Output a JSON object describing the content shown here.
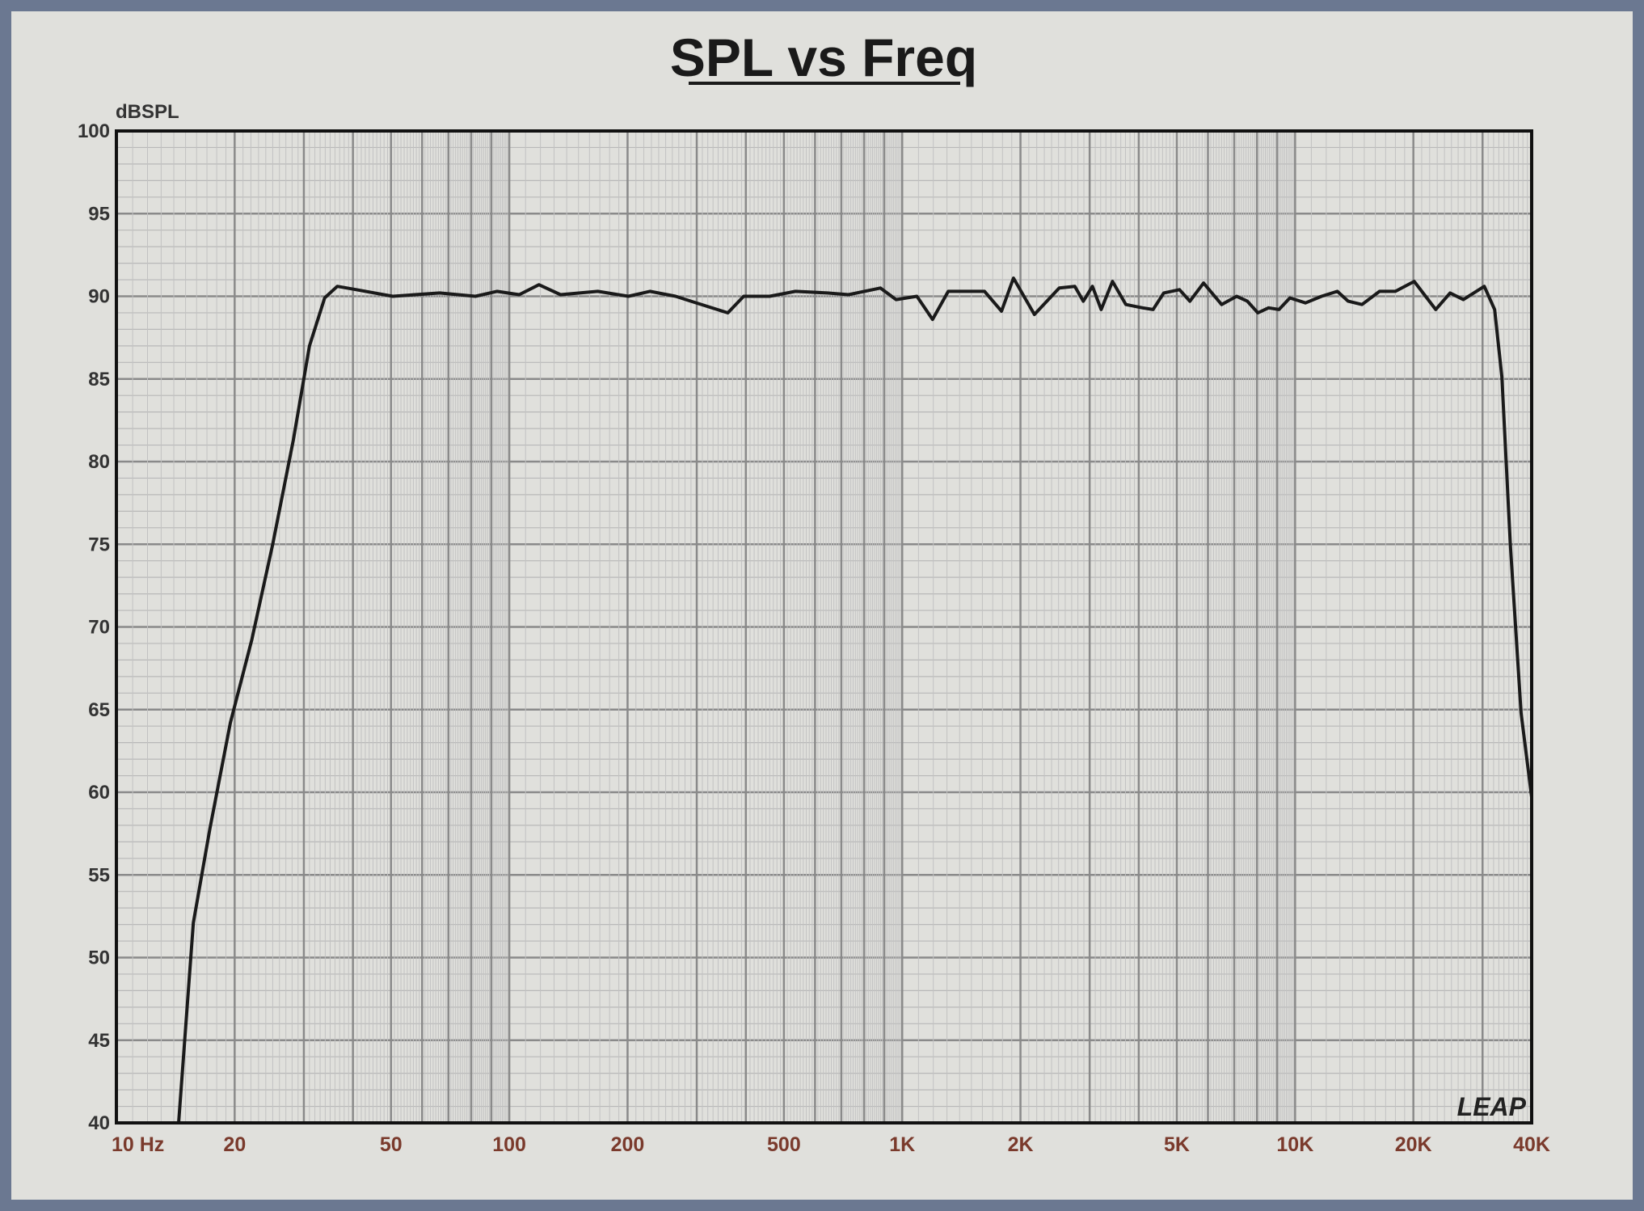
{
  "chart_data": {
    "type": "line",
    "title": "SPL vs Freq",
    "ylabel": "dBSPL",
    "xlabel": "",
    "xscale": "log",
    "xlim": [
      10,
      40000
    ],
    "ylim": [
      40,
      100
    ],
    "grid": true,
    "logo": "LEAP",
    "x_ticks": [
      {
        "value": 10,
        "label": "10  Hz"
      },
      {
        "value": 20,
        "label": "20"
      },
      {
        "value": 50,
        "label": "50"
      },
      {
        "value": 100,
        "label": "100"
      },
      {
        "value": 200,
        "label": "200"
      },
      {
        "value": 500,
        "label": "500"
      },
      {
        "value": 1000,
        "label": "1K"
      },
      {
        "value": 2000,
        "label": "2K"
      },
      {
        "value": 5000,
        "label": "5K"
      },
      {
        "value": 10000,
        "label": "10K"
      },
      {
        "value": 20000,
        "label": "20K"
      },
      {
        "value": 40000,
        "label": "40K"
      }
    ],
    "y_ticks": [
      100,
      95,
      90,
      85,
      80,
      75,
      70,
      65,
      60,
      55,
      50,
      45,
      40
    ],
    "colors": {
      "frame": "#6b7891",
      "background": "#e0e0dc",
      "curve": "#1a1a1a",
      "x_tick_labels": "#7a3a2c"
    },
    "series": [
      {
        "x": [
          10,
          14.4,
          15.7,
          17.3,
          19.5,
          22.1,
          25,
          28.2,
          31,
          33.9,
          36.5,
          40.8,
          50.5,
          66.5,
          82,
          93,
          106,
          119,
          135,
          168,
          201,
          228,
          265,
          290,
          360,
          395,
          460,
          535,
          645,
          730,
          880,
          965,
          1090,
          1195,
          1310,
          1620,
          1790,
          1920,
          2170,
          2510,
          2750,
          2890,
          3050,
          3210,
          3430,
          3710,
          4090,
          4350,
          4630,
          5080,
          5400,
          5850,
          6500,
          7100,
          7560,
          8040,
          8560,
          9100,
          9700,
          10630,
          11680,
          12810,
          13650,
          14800,
          16400,
          18000,
          20100,
          22800,
          24800,
          26800,
          30300,
          32200,
          33600,
          35300,
          37600,
          40000
        ],
        "y": [
          40,
          40,
          52.1,
          57.8,
          64.2,
          69.2,
          75,
          81.3,
          87,
          89.9,
          90.6,
          90.4,
          90,
          90.2,
          90,
          90.3,
          90.1,
          90.7,
          90.1,
          90.3,
          90.0,
          90.3,
          90.0,
          89.7,
          89.0,
          90.0,
          90.0,
          90.3,
          90.2,
          90.1,
          90.5,
          89.8,
          90.0,
          88.6,
          90.3,
          90.3,
          89.1,
          91.1,
          88.9,
          90.5,
          90.6,
          89.7,
          90.6,
          89.2,
          90.9,
          89.5,
          89.3,
          89.2,
          90.2,
          90.4,
          89.7,
          90.8,
          89.5,
          90.0,
          89.7,
          89.0,
          89.3,
          89.2,
          89.9,
          89.6,
          90.0,
          90.3,
          89.7,
          89.5,
          90.3,
          90.3,
          90.9,
          89.2,
          90.2,
          89.8,
          90.6,
          89.2,
          85.1,
          75,
          64.8,
          59.7
        ]
      }
    ]
  }
}
